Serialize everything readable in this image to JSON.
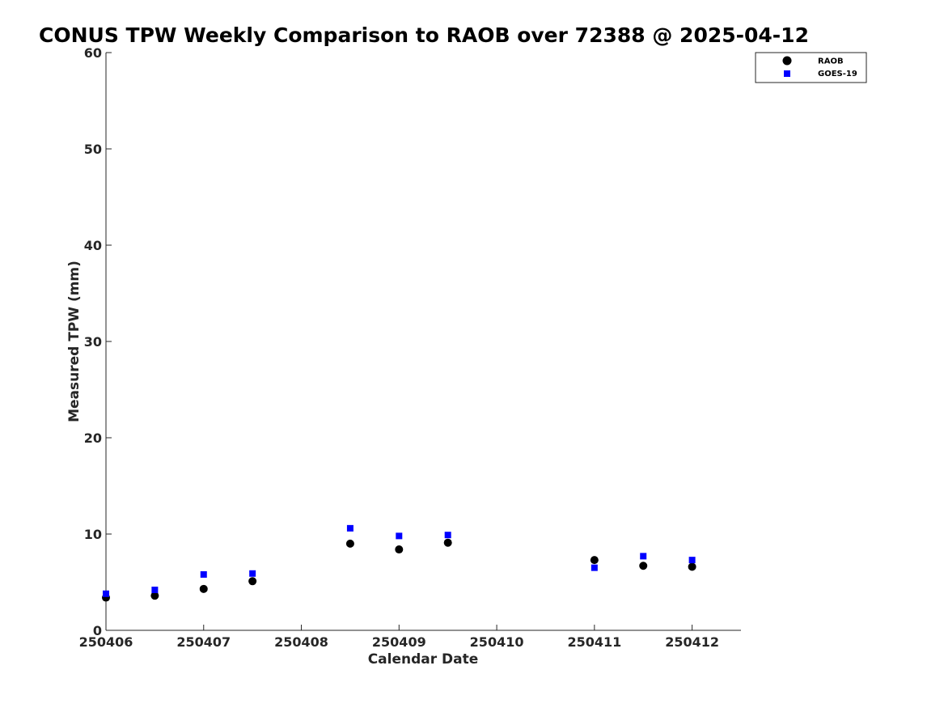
{
  "chart_data": {
    "type": "scatter",
    "title": "CONUS TPW Weekly Comparison to RAOB over 72388 @ 2025-04-12",
    "xlabel": "Calendar Date",
    "ylabel": "Measured TPW (mm)",
    "xlim": [
      250406,
      250412.5
    ],
    "ylim": [
      0,
      60
    ],
    "x_ticks": [
      250406,
      250407,
      250408,
      250409,
      250410,
      250411,
      250412
    ],
    "x_tick_labels": [
      "250406",
      "250407",
      "250408",
      "250409",
      "250410",
      "250411",
      "250412"
    ],
    "y_ticks": [
      0,
      10,
      20,
      30,
      40,
      50,
      60
    ],
    "y_tick_labels": [
      "0",
      "10",
      "20",
      "30",
      "40",
      "50",
      "60"
    ],
    "grid": false,
    "legend_position": "top-right",
    "series": [
      {
        "name": "RAOB",
        "marker": "circle",
        "color": "#000000",
        "points": [
          {
            "x": 250406.0,
            "y": 3.4
          },
          {
            "x": 250406.5,
            "y": 3.6
          },
          {
            "x": 250407.0,
            "y": 4.3
          },
          {
            "x": 250407.5,
            "y": 5.1
          },
          {
            "x": 250408.5,
            "y": 9.0
          },
          {
            "x": 250409.0,
            "y": 8.4
          },
          {
            "x": 250409.5,
            "y": 9.1
          },
          {
            "x": 250411.0,
            "y": 7.3
          },
          {
            "x": 250411.5,
            "y": 6.7
          },
          {
            "x": 250412.0,
            "y": 6.6
          }
        ]
      },
      {
        "name": "GOES-19",
        "marker": "square",
        "color": "#0000ff",
        "points": [
          {
            "x": 250406.0,
            "y": 3.8
          },
          {
            "x": 250406.5,
            "y": 4.2
          },
          {
            "x": 250407.0,
            "y": 5.8
          },
          {
            "x": 250407.5,
            "y": 5.9
          },
          {
            "x": 250408.5,
            "y": 10.6
          },
          {
            "x": 250409.0,
            "y": 9.8
          },
          {
            "x": 250409.5,
            "y": 9.9
          },
          {
            "x": 250411.0,
            "y": 6.5
          },
          {
            "x": 250411.5,
            "y": 7.7
          },
          {
            "x": 250412.0,
            "y": 7.3
          }
        ]
      }
    ]
  }
}
